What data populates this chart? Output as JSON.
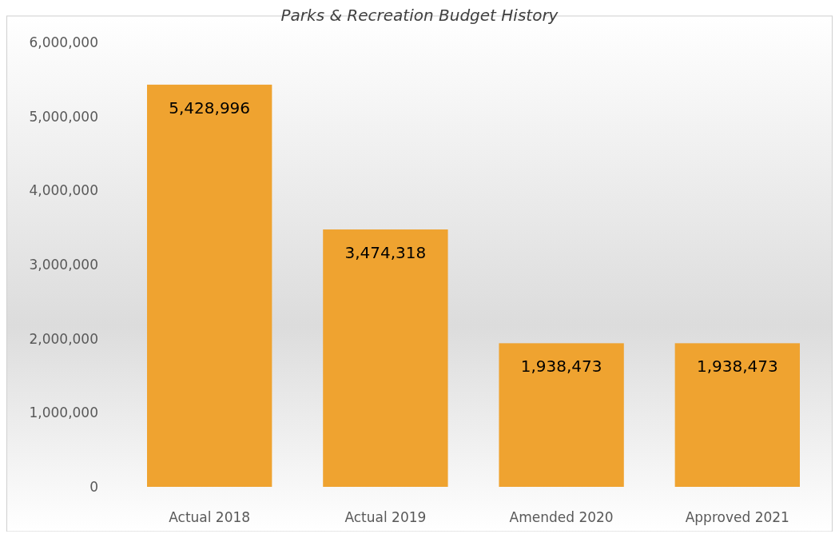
{
  "chart_data": {
    "type": "bar",
    "title": "Parks & Recreation Budget History",
    "categories": [
      "Actual 2018",
      "Actual 2019",
      "Amended 2020",
      "Approved 2021"
    ],
    "values": [
      5428996,
      3474318,
      1938473,
      1938473
    ],
    "color": "#efa330",
    "ylim": [
      0,
      6000000
    ],
    "yticks": [
      {
        "value": 0,
        "label": "0"
      },
      {
        "value": 1000000,
        "label": "1,000,000"
      },
      {
        "value": 2000000,
        "label": "2,000,000"
      },
      {
        "value": 3000000,
        "label": "3,000,000"
      },
      {
        "value": 4000000,
        "label": "4,000,000"
      },
      {
        "value": 5000000,
        "label": "5,000,000"
      },
      {
        "value": 6000000,
        "label": "6,000,000"
      }
    ],
    "value_labels": [
      "5,428,996",
      "3,474,318",
      "1,938,473",
      "1,938,473"
    ]
  }
}
